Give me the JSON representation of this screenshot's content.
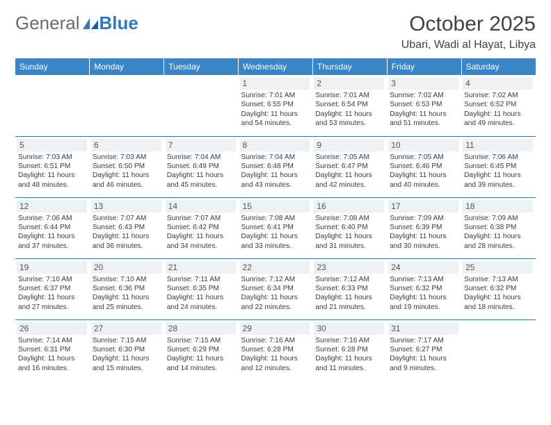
{
  "brand": {
    "part1": "General",
    "part2": "Blue"
  },
  "title": "October 2025",
  "location": "Ubari, Wadi al Hayat, Libya",
  "colors": {
    "header_bg": "#3a85c8",
    "header_text": "#ffffff",
    "daynum_bg": "#eef1f3",
    "row_border": "#3a78aa",
    "logo_general": "#6a6a6a",
    "logo_blue": "#2f7ac0"
  },
  "day_headers": [
    "Sunday",
    "Monday",
    "Tuesday",
    "Wednesday",
    "Thursday",
    "Friday",
    "Saturday"
  ],
  "weeks": [
    [
      null,
      null,
      null,
      {
        "n": "1",
        "sr": "7:01 AM",
        "ss": "6:55 PM",
        "dl": "11 hours and 54 minutes."
      },
      {
        "n": "2",
        "sr": "7:01 AM",
        "ss": "6:54 PM",
        "dl": "11 hours and 53 minutes."
      },
      {
        "n": "3",
        "sr": "7:02 AM",
        "ss": "6:53 PM",
        "dl": "11 hours and 51 minutes."
      },
      {
        "n": "4",
        "sr": "7:02 AM",
        "ss": "6:52 PM",
        "dl": "11 hours and 49 minutes."
      }
    ],
    [
      {
        "n": "5",
        "sr": "7:03 AM",
        "ss": "6:51 PM",
        "dl": "11 hours and 48 minutes."
      },
      {
        "n": "6",
        "sr": "7:03 AM",
        "ss": "6:50 PM",
        "dl": "11 hours and 46 minutes."
      },
      {
        "n": "7",
        "sr": "7:04 AM",
        "ss": "6:49 PM",
        "dl": "11 hours and 45 minutes."
      },
      {
        "n": "8",
        "sr": "7:04 AM",
        "ss": "6:48 PM",
        "dl": "11 hours and 43 minutes."
      },
      {
        "n": "9",
        "sr": "7:05 AM",
        "ss": "6:47 PM",
        "dl": "11 hours and 42 minutes."
      },
      {
        "n": "10",
        "sr": "7:05 AM",
        "ss": "6:46 PM",
        "dl": "11 hours and 40 minutes."
      },
      {
        "n": "11",
        "sr": "7:06 AM",
        "ss": "6:45 PM",
        "dl": "11 hours and 39 minutes."
      }
    ],
    [
      {
        "n": "12",
        "sr": "7:06 AM",
        "ss": "6:44 PM",
        "dl": "11 hours and 37 minutes."
      },
      {
        "n": "13",
        "sr": "7:07 AM",
        "ss": "6:43 PM",
        "dl": "11 hours and 36 minutes."
      },
      {
        "n": "14",
        "sr": "7:07 AM",
        "ss": "6:42 PM",
        "dl": "11 hours and 34 minutes."
      },
      {
        "n": "15",
        "sr": "7:08 AM",
        "ss": "6:41 PM",
        "dl": "11 hours and 33 minutes."
      },
      {
        "n": "16",
        "sr": "7:08 AM",
        "ss": "6:40 PM",
        "dl": "11 hours and 31 minutes."
      },
      {
        "n": "17",
        "sr": "7:09 AM",
        "ss": "6:39 PM",
        "dl": "11 hours and 30 minutes."
      },
      {
        "n": "18",
        "sr": "7:09 AM",
        "ss": "6:38 PM",
        "dl": "11 hours and 28 minutes."
      }
    ],
    [
      {
        "n": "19",
        "sr": "7:10 AM",
        "ss": "6:37 PM",
        "dl": "11 hours and 27 minutes."
      },
      {
        "n": "20",
        "sr": "7:10 AM",
        "ss": "6:36 PM",
        "dl": "11 hours and 25 minutes."
      },
      {
        "n": "21",
        "sr": "7:11 AM",
        "ss": "6:35 PM",
        "dl": "11 hours and 24 minutes."
      },
      {
        "n": "22",
        "sr": "7:12 AM",
        "ss": "6:34 PM",
        "dl": "11 hours and 22 minutes."
      },
      {
        "n": "23",
        "sr": "7:12 AM",
        "ss": "6:33 PM",
        "dl": "11 hours and 21 minutes."
      },
      {
        "n": "24",
        "sr": "7:13 AM",
        "ss": "6:32 PM",
        "dl": "11 hours and 19 minutes."
      },
      {
        "n": "25",
        "sr": "7:13 AM",
        "ss": "6:32 PM",
        "dl": "11 hours and 18 minutes."
      }
    ],
    [
      {
        "n": "26",
        "sr": "7:14 AM",
        "ss": "6:31 PM",
        "dl": "11 hours and 16 minutes."
      },
      {
        "n": "27",
        "sr": "7:15 AM",
        "ss": "6:30 PM",
        "dl": "11 hours and 15 minutes."
      },
      {
        "n": "28",
        "sr": "7:15 AM",
        "ss": "6:29 PM",
        "dl": "11 hours and 14 minutes."
      },
      {
        "n": "29",
        "sr": "7:16 AM",
        "ss": "6:28 PM",
        "dl": "11 hours and 12 minutes."
      },
      {
        "n": "30",
        "sr": "7:16 AM",
        "ss": "6:28 PM",
        "dl": "11 hours and 11 minutes."
      },
      {
        "n": "31",
        "sr": "7:17 AM",
        "ss": "6:27 PM",
        "dl": "11 hours and 9 minutes."
      },
      null
    ]
  ],
  "labels": {
    "sunrise": "Sunrise: ",
    "sunset": "Sunset: ",
    "daylight": "Daylight: "
  }
}
